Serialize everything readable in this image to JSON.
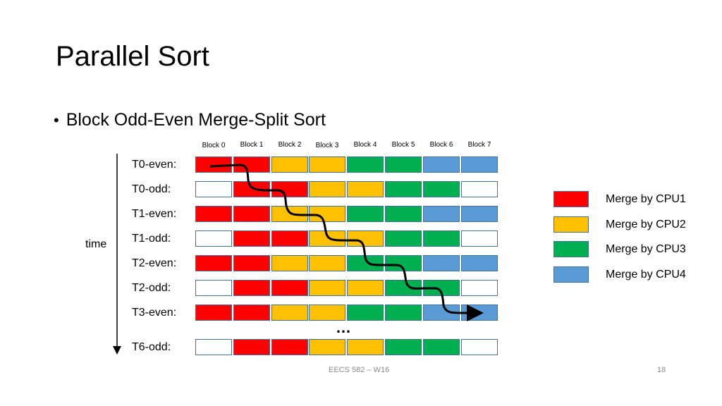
{
  "title": "Parallel Sort",
  "bullet": "Block Odd-Even Merge-Split Sort",
  "blocks": [
    "Block 0",
    "Block 1",
    "Block 2",
    "Block 3",
    "Block 4",
    "Block 5",
    "Block 6",
    "Block 7"
  ],
  "time_label": "time",
  "colors": {
    "white": "#ffffff",
    "red": "#ff0000",
    "yellow": "#ffc000",
    "green": "#00b050",
    "blue": "#5b9bd5",
    "border": "#41719c"
  },
  "rows": [
    {
      "label": "T0-even:",
      "cells": [
        "red",
        "red",
        "yellow",
        "yellow",
        "green",
        "green",
        "blue",
        "blue"
      ]
    },
    {
      "label": "T0-odd:",
      "cells": [
        "white",
        "red",
        "red",
        "yellow",
        "yellow",
        "green",
        "green",
        "white"
      ]
    },
    {
      "label": "T1-even:",
      "cells": [
        "red",
        "red",
        "yellow",
        "yellow",
        "green",
        "green",
        "blue",
        "blue"
      ]
    },
    {
      "label": "T1-odd:",
      "cells": [
        "white",
        "red",
        "red",
        "yellow",
        "yellow",
        "green",
        "green",
        "white"
      ]
    },
    {
      "label": "T2-even:",
      "cells": [
        "red",
        "red",
        "yellow",
        "yellow",
        "green",
        "green",
        "blue",
        "blue"
      ]
    },
    {
      "label": "T2-odd:",
      "cells": [
        "white",
        "red",
        "red",
        "yellow",
        "yellow",
        "green",
        "green",
        "white"
      ]
    },
    {
      "label": "T3-even:",
      "cells": [
        "red",
        "red",
        "yellow",
        "yellow",
        "green",
        "green",
        "blue",
        "blue"
      ]
    },
    {
      "label": "T6-odd:",
      "cells": [
        "white",
        "red",
        "red",
        "yellow",
        "yellow",
        "green",
        "green",
        "white"
      ]
    }
  ],
  "ellipsis": "…",
  "legend": [
    {
      "label": "Merge by CPU1",
      "color": "red"
    },
    {
      "label": "Merge by CPU2",
      "color": "yellow"
    },
    {
      "label": "Merge by CPU3",
      "color": "green"
    },
    {
      "label": "Merge by CPU4",
      "color": "blue"
    }
  ],
  "footer": "EECS 582 – W16",
  "page_number": "18"
}
